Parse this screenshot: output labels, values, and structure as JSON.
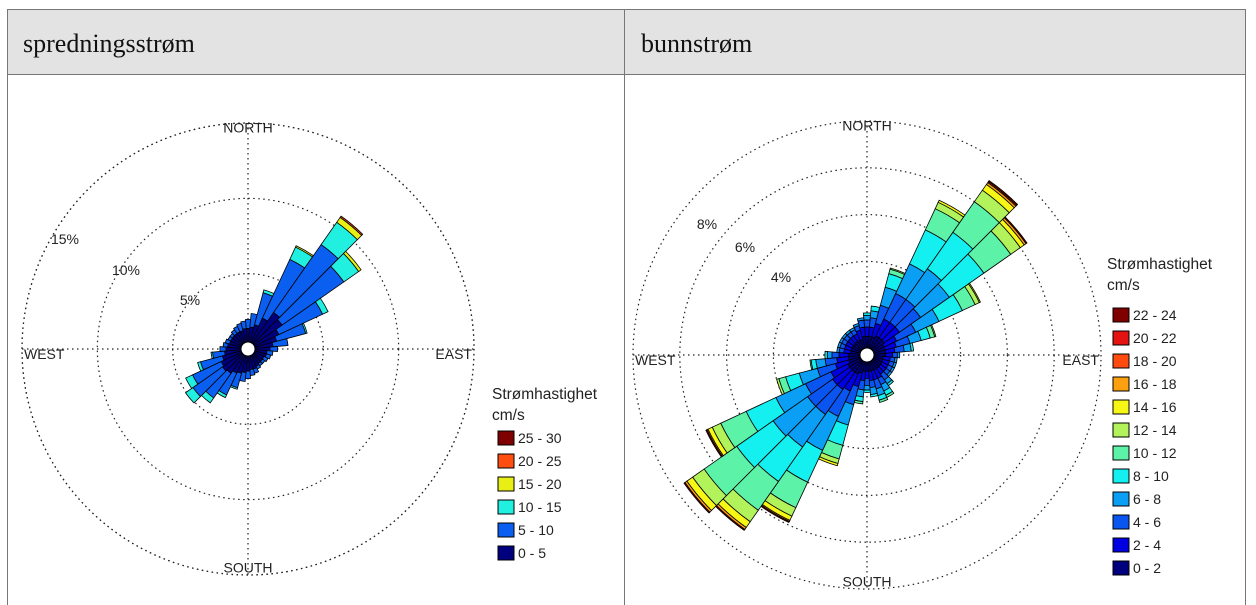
{
  "panels": [
    {
      "header": "spredningsstrøm"
    },
    {
      "header": "bunnstrøm"
    }
  ],
  "chart_data": [
    {
      "type": "polar-stacked-bar",
      "title": "spredningsstrøm",
      "directions": [
        "NORTH",
        "EAST",
        "SOUTH",
        "WEST"
      ],
      "ring_labels": [
        "5%",
        "10%",
        "15%"
      ],
      "ring_values": [
        5,
        10,
        15
      ],
      "max_percent": 15,
      "legend_title": [
        "Strømhastighet",
        "cm/s"
      ],
      "bins": [
        "0 - 5",
        "5 - 10",
        "10 - 15",
        "15 - 20",
        "20 - 25",
        "25 - 30"
      ],
      "colors": [
        "#00007f",
        "#0a5ff0",
        "#21f0e0",
        "#e8ef14",
        "#ff4e10",
        "#7f0000"
      ],
      "sectors": [
        {
          "dir": 0,
          "values": [
            0.9,
            0.6,
            0.0,
            0.0,
            0.0,
            0.0
          ]
        },
        {
          "dir": 10,
          "values": [
            1.0,
            0.9,
            0.0,
            0.0,
            0.0,
            0.0
          ]
        },
        {
          "dir": 20,
          "values": [
            1.2,
            2.2,
            0.2,
            0.0,
            0.0,
            0.0
          ]
        },
        {
          "dir": 30,
          "values": [
            1.8,
            4.3,
            0.9,
            0.1,
            0.0,
            0.0
          ]
        },
        {
          "dir": 40,
          "values": [
            2.5,
            5.5,
            1.8,
            0.4,
            0.1,
            0.0
          ]
        },
        {
          "dir": 50,
          "values": [
            2.3,
            5.0,
            1.2,
            0.2,
            0.0,
            0.0
          ]
        },
        {
          "dir": 60,
          "values": [
            1.8,
            3.2,
            0.4,
            0.0,
            0.0,
            0.0
          ]
        },
        {
          "dir": 70,
          "values": [
            1.5,
            2.0,
            0.1,
            0.0,
            0.0,
            0.0
          ]
        },
        {
          "dir": 80,
          "values": [
            1.2,
            1.0,
            0.0,
            0.0,
            0.0,
            0.0
          ]
        },
        {
          "dir": 90,
          "values": [
            1.0,
            0.5,
            0.0,
            0.0,
            0.0,
            0.0
          ]
        },
        {
          "dir": 100,
          "values": [
            0.8,
            0.4,
            0.0,
            0.0,
            0.0,
            0.0
          ]
        },
        {
          "dir": 110,
          "values": [
            0.8,
            0.3,
            0.0,
            0.0,
            0.0,
            0.0
          ]
        },
        {
          "dir": 120,
          "values": [
            0.7,
            0.3,
            0.0,
            0.0,
            0.0,
            0.0
          ]
        },
        {
          "dir": 130,
          "values": [
            0.7,
            0.2,
            0.0,
            0.0,
            0.0,
            0.0
          ]
        },
        {
          "dir": 140,
          "values": [
            0.7,
            0.2,
            0.0,
            0.0,
            0.0,
            0.0
          ]
        },
        {
          "dir": 150,
          "values": [
            0.8,
            0.2,
            0.0,
            0.0,
            0.0,
            0.0
          ]
        },
        {
          "dir": 160,
          "values": [
            0.9,
            0.3,
            0.0,
            0.0,
            0.0,
            0.0
          ]
        },
        {
          "dir": 170,
          "values": [
            0.9,
            0.4,
            0.0,
            0.0,
            0.0,
            0.0
          ]
        },
        {
          "dir": 180,
          "values": [
            1.0,
            0.5,
            0.0,
            0.0,
            0.0,
            0.0
          ]
        },
        {
          "dir": 190,
          "values": [
            1.1,
            0.6,
            0.0,
            0.0,
            0.0,
            0.0
          ]
        },
        {
          "dir": 200,
          "values": [
            1.2,
            1.0,
            0.1,
            0.0,
            0.0,
            0.0
          ]
        },
        {
          "dir": 210,
          "values": [
            1.3,
            1.6,
            0.2,
            0.0,
            0.0,
            0.0
          ]
        },
        {
          "dir": 220,
          "values": [
            1.5,
            2.0,
            0.4,
            0.0,
            0.0,
            0.0
          ]
        },
        {
          "dir": 230,
          "values": [
            1.6,
            2.4,
            0.6,
            0.0,
            0.0,
            0.0
          ]
        },
        {
          "dir": 240,
          "values": [
            1.5,
            2.1,
            0.5,
            0.0,
            0.0,
            0.0
          ]
        },
        {
          "dir": 250,
          "values": [
            1.3,
            1.5,
            0.2,
            0.0,
            0.0,
            0.0
          ]
        },
        {
          "dir": 260,
          "values": [
            1.1,
            0.8,
            0.1,
            0.0,
            0.0,
            0.0
          ]
        },
        {
          "dir": 270,
          "values": [
            1.0,
            0.4,
            0.0,
            0.0,
            0.0,
            0.0
          ]
        },
        {
          "dir": 280,
          "values": [
            0.9,
            0.3,
            0.0,
            0.0,
            0.0,
            0.0
          ]
        },
        {
          "dir": 290,
          "values": [
            0.8,
            0.3,
            0.0,
            0.0,
            0.0,
            0.0
          ]
        },
        {
          "dir": 300,
          "values": [
            0.8,
            0.2,
            0.0,
            0.0,
            0.0,
            0.0
          ]
        },
        {
          "dir": 310,
          "values": [
            0.8,
            0.2,
            0.0,
            0.0,
            0.0,
            0.0
          ]
        },
        {
          "dir": 320,
          "values": [
            0.8,
            0.3,
            0.0,
            0.0,
            0.0,
            0.0
          ]
        },
        {
          "dir": 330,
          "values": [
            0.8,
            0.4,
            0.0,
            0.0,
            0.0,
            0.0
          ]
        },
        {
          "dir": 340,
          "values": [
            0.8,
            0.5,
            0.0,
            0.0,
            0.0,
            0.0
          ]
        },
        {
          "dir": 350,
          "values": [
            0.9,
            0.5,
            0.0,
            0.0,
            0.0,
            0.0
          ]
        }
      ]
    },
    {
      "type": "polar-stacked-bar",
      "title": "bunnstrøm",
      "directions": [
        "NORTH",
        "EAST",
        "SOUTH",
        "WEST"
      ],
      "ring_labels": [
        "4%",
        "6%",
        "8%"
      ],
      "ring_values": [
        4,
        6,
        8
      ],
      "max_percent": 10,
      "legend_title": [
        "Strømhastighet",
        "cm/s"
      ],
      "bins": [
        "0 - 2",
        "2 - 4",
        "4 - 6",
        "6 - 8",
        "8 - 10",
        "10 - 12",
        "12 - 14",
        "14 - 16",
        "16 - 18",
        "18 - 20",
        "20 - 22",
        "22 - 24"
      ],
      "colors": [
        "#00007f",
        "#0000e0",
        "#0a55f0",
        "#0a9ff5",
        "#14efef",
        "#5cf2a8",
        "#b2f25a",
        "#f7f716",
        "#ffa010",
        "#ff4a10",
        "#e51212",
        "#800000"
      ],
      "sectors": [
        {
          "dir": 0,
          "values": [
            0.5,
            0.4,
            0.3,
            0.2,
            0.1,
            0.0,
            0.0,
            0.0,
            0.0,
            0.0,
            0.0,
            0.0
          ]
        },
        {
          "dir": 10,
          "values": [
            0.5,
            0.4,
            0.4,
            0.3,
            0.2,
            0.0,
            0.0,
            0.0,
            0.0,
            0.0,
            0.0,
            0.0
          ]
        },
        {
          "dir": 20,
          "values": [
            0.5,
            0.6,
            0.8,
            0.8,
            0.6,
            0.2,
            0.05,
            0.0,
            0.0,
            0.0,
            0.0,
            0.0
          ]
        },
        {
          "dir": 30,
          "values": [
            0.6,
            0.8,
            1.2,
            1.4,
            1.6,
            1.0,
            0.3,
            0.1,
            0.0,
            0.0,
            0.0,
            0.0
          ]
        },
        {
          "dir": 40,
          "values": [
            0.6,
            0.8,
            1.2,
            1.6,
            1.9,
            1.6,
            0.6,
            0.3,
            0.1,
            0.05,
            0.0,
            0.05
          ]
        },
        {
          "dir": 50,
          "values": [
            0.6,
            0.8,
            1.1,
            1.5,
            1.8,
            1.4,
            0.5,
            0.2,
            0.1,
            0.0,
            0.0,
            0.05
          ]
        },
        {
          "dir": 60,
          "values": [
            0.5,
            0.6,
            0.9,
            1.1,
            1.1,
            0.6,
            0.2,
            0.05,
            0.0,
            0.0,
            0.0,
            0.0
          ]
        },
        {
          "dir": 70,
          "values": [
            0.5,
            0.5,
            0.6,
            0.5,
            0.4,
            0.2,
            0.05,
            0.0,
            0.0,
            0.0,
            0.0,
            0.0
          ]
        },
        {
          "dir": 80,
          "values": [
            0.5,
            0.4,
            0.4,
            0.3,
            0.1,
            0.0,
            0.0,
            0.0,
            0.0,
            0.0,
            0.0,
            0.0
          ]
        },
        {
          "dir": 90,
          "values": [
            0.5,
            0.3,
            0.2,
            0.1,
            0.0,
            0.0,
            0.0,
            0.0,
            0.0,
            0.0,
            0.0,
            0.0
          ]
        },
        {
          "dir": 100,
          "values": [
            0.4,
            0.3,
            0.2,
            0.1,
            0.0,
            0.0,
            0.0,
            0.0,
            0.0,
            0.0,
            0.0,
            0.0
          ]
        },
        {
          "dir": 110,
          "values": [
            0.4,
            0.3,
            0.2,
            0.1,
            0.0,
            0.0,
            0.0,
            0.0,
            0.0,
            0.0,
            0.0,
            0.0
          ]
        },
        {
          "dir": 120,
          "values": [
            0.4,
            0.3,
            0.2,
            0.1,
            0.0,
            0.0,
            0.0,
            0.0,
            0.0,
            0.0,
            0.0,
            0.0
          ]
        },
        {
          "dir": 130,
          "values": [
            0.4,
            0.3,
            0.2,
            0.1,
            0.0,
            0.0,
            0.0,
            0.0,
            0.0,
            0.0,
            0.0,
            0.0
          ]
        },
        {
          "dir": 140,
          "values": [
            0.4,
            0.3,
            0.3,
            0.2,
            0.1,
            0.0,
            0.0,
            0.0,
            0.0,
            0.0,
            0.0,
            0.0
          ]
        },
        {
          "dir": 150,
          "values": [
            0.4,
            0.4,
            0.3,
            0.3,
            0.2,
            0.1,
            0.0,
            0.0,
            0.0,
            0.0,
            0.0,
            0.0
          ]
        },
        {
          "dir": 160,
          "values": [
            0.4,
            0.4,
            0.4,
            0.3,
            0.2,
            0.1,
            0.0,
            0.0,
            0.0,
            0.0,
            0.0,
            0.0
          ]
        },
        {
          "dir": 170,
          "values": [
            0.4,
            0.4,
            0.3,
            0.3,
            0.1,
            0.0,
            0.0,
            0.0,
            0.0,
            0.0,
            0.0,
            0.0
          ]
        },
        {
          "dir": 180,
          "values": [
            0.4,
            0.3,
            0.3,
            0.2,
            0.1,
            0.0,
            0.0,
            0.0,
            0.0,
            0.0,
            0.0,
            0.0
          ]
        },
        {
          "dir": 190,
          "values": [
            0.4,
            0.4,
            0.4,
            0.3,
            0.2,
            0.1,
            0.0,
            0.0,
            0.0,
            0.0,
            0.0,
            0.0
          ]
        },
        {
          "dir": 200,
          "values": [
            0.5,
            0.6,
            0.8,
            0.9,
            0.9,
            0.6,
            0.2,
            0.1,
            0.0,
            0.0,
            0.0,
            0.0
          ]
        },
        {
          "dir": 210,
          "values": [
            0.6,
            0.8,
            1.2,
            1.6,
            1.5,
            1.2,
            0.4,
            0.2,
            0.05,
            0.0,
            0.0,
            0.05
          ]
        },
        {
          "dir": 220,
          "values": [
            0.6,
            0.9,
            1.3,
            1.7,
            1.8,
            1.5,
            0.6,
            0.3,
            0.1,
            0.0,
            0.0,
            0.05
          ]
        },
        {
          "dir": 230,
          "values": [
            0.6,
            0.9,
            1.3,
            1.8,
            1.9,
            1.7,
            0.6,
            0.3,
            0.1,
            0.0,
            0.0,
            0.05
          ]
        },
        {
          "dir": 240,
          "values": [
            0.6,
            0.8,
            1.2,
            1.4,
            1.4,
            1.2,
            0.4,
            0.2,
            0.05,
            0.0,
            0.0,
            0.05
          ]
        },
        {
          "dir": 250,
          "values": [
            0.5,
            0.6,
            0.8,
            0.8,
            0.6,
            0.3,
            0.1,
            0.0,
            0.0,
            0.0,
            0.0,
            0.0
          ]
        },
        {
          "dir": 260,
          "values": [
            0.5,
            0.5,
            0.5,
            0.4,
            0.2,
            0.05,
            0.0,
            0.0,
            0.0,
            0.0,
            0.0,
            0.0
          ]
        },
        {
          "dir": 270,
          "values": [
            0.5,
            0.4,
            0.3,
            0.2,
            0.1,
            0.0,
            0.0,
            0.0,
            0.0,
            0.0,
            0.0,
            0.0
          ]
        },
        {
          "dir": 280,
          "values": [
            0.4,
            0.3,
            0.2,
            0.1,
            0.0,
            0.0,
            0.0,
            0.0,
            0.0,
            0.0,
            0.0,
            0.0
          ]
        },
        {
          "dir": 290,
          "values": [
            0.4,
            0.3,
            0.2,
            0.1,
            0.0,
            0.0,
            0.0,
            0.0,
            0.0,
            0.0,
            0.0,
            0.0
          ]
        },
        {
          "dir": 300,
          "values": [
            0.4,
            0.3,
            0.2,
            0.1,
            0.0,
            0.0,
            0.0,
            0.0,
            0.0,
            0.0,
            0.0,
            0.0
          ]
        },
        {
          "dir": 310,
          "values": [
            0.4,
            0.3,
            0.2,
            0.1,
            0.0,
            0.0,
            0.0,
            0.0,
            0.0,
            0.0,
            0.0,
            0.0
          ]
        },
        {
          "dir": 320,
          "values": [
            0.4,
            0.3,
            0.2,
            0.1,
            0.0,
            0.0,
            0.0,
            0.0,
            0.0,
            0.0,
            0.0,
            0.0
          ]
        },
        {
          "dir": 330,
          "values": [
            0.4,
            0.3,
            0.2,
            0.1,
            0.0,
            0.0,
            0.0,
            0.0,
            0.0,
            0.0,
            0.0,
            0.0
          ]
        },
        {
          "dir": 340,
          "values": [
            0.4,
            0.4,
            0.2,
            0.1,
            0.0,
            0.0,
            0.0,
            0.0,
            0.0,
            0.0,
            0.0,
            0.0
          ]
        },
        {
          "dir": 350,
          "values": [
            0.5,
            0.4,
            0.3,
            0.1,
            0.0,
            0.0,
            0.0,
            0.0,
            0.0,
            0.0,
            0.0,
            0.0
          ]
        }
      ]
    }
  ]
}
